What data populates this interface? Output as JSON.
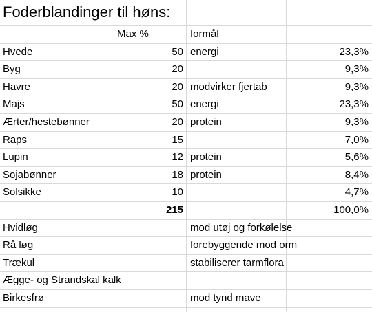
{
  "title": "Foderblandinger til høns:",
  "table": {
    "header": {
      "max": "Max %",
      "purpose": "formål"
    },
    "rows": [
      {
        "name": "Hvede",
        "max": 50,
        "purpose": "energi",
        "share": "23,3%"
      },
      {
        "name": "Byg",
        "max": 20,
        "share": "9,3%"
      },
      {
        "name": "Havre",
        "max": 20,
        "purpose": "modvirker fjertab",
        "share": "9,3%"
      },
      {
        "name": "Majs",
        "max": 50,
        "purpose": "energi",
        "share": "23,3%"
      },
      {
        "name": "Ærter/hestebønner",
        "max": 20,
        "purpose": "protein",
        "share": "9,3%"
      },
      {
        "name": "Raps",
        "max": 15,
        "share": "7,0%"
      },
      {
        "name": "Lupin",
        "max": 12,
        "purpose": "protein",
        "share": "5,6%"
      },
      {
        "name": "Sojabønner",
        "max": 18,
        "purpose": "protein",
        "share": "8,4%"
      },
      {
        "name": "Solsikke",
        "max": 10,
        "share": "4,7%"
      },
      {
        "max": 215,
        "share": "100,0%"
      },
      {
        "name": "Hvidløg",
        "purpose": "mod utøj og forkølelse"
      },
      {
        "name": "Rå løg",
        "purpose": "forebyggende mod orm"
      },
      {
        "name": "Trækul",
        "purpose": "stabiliserer tarmflora"
      },
      {
        "name": "Ægge- og Strandskal kalk"
      },
      {
        "name": "Birkesfrø",
        "purpose": "mod tynd mave"
      }
    ],
    "total_row": 9
  }
}
